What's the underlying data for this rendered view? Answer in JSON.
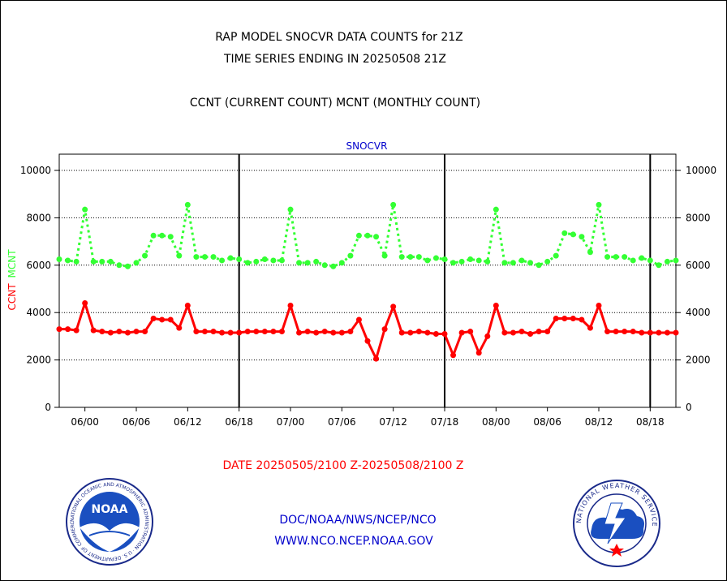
{
  "header": {
    "title_line1": "RAP MODEL SNOCVR DATA COUNTS for 21Z",
    "title_line2": "TIME SERIES ENDING IN 20250508 21Z",
    "legend_text": "CCNT (CURRENT COUNT) MCNT (MONTHLY COUNT)"
  },
  "footer": {
    "date_range": "DATE 20250505/2100 Z-20250508/2100 Z",
    "org": "DOC/NOAA/NWS/NCEP/NCO",
    "url": "WWW.NCO.NCEP.NOAA.GOV",
    "noaa_logo_text": "NOAA",
    "noaa_ring_text": "NATIONAL OCEANIC AND ATMOSPHERIC ADMINISTRATION · U.S. DEPARTMENT OF COMMERCE ·",
    "nws_ring_text": "NATIONAL WEATHER SERVICE"
  },
  "colors": {
    "ccnt": "#ff0000",
    "mcnt": "#33ff33",
    "label_blue": "#0000cc",
    "footer_red": "#ff0000",
    "footer_blue": "#0000cc"
  },
  "chart_data": {
    "type": "line",
    "title": "SNOCVR",
    "ylabel_ccnt": "CCNT",
    "ylabel_mcnt": "MCNT",
    "ylim": [
      0,
      10000
    ],
    "yticks": [
      0,
      2000,
      4000,
      6000,
      8000,
      10000
    ],
    "ytick_labels": [
      "0",
      "2000",
      "4000",
      "6000",
      "8000",
      "10000"
    ],
    "xlim": [
      -3,
      69
    ],
    "xticks": [
      0,
      6,
      12,
      18,
      24,
      30,
      36,
      42,
      48,
      54,
      60,
      66
    ],
    "xtick_labels": [
      "06/00",
      "06/06",
      "06/12",
      "06/18",
      "07/00",
      "07/06",
      "07/12",
      "07/18",
      "08/00",
      "08/06",
      "08/12",
      "08/18"
    ],
    "x_unit": "hours from 06/00",
    "day_boundaries": [
      18,
      42,
      66
    ],
    "grid": "horizontal dotted",
    "x": [
      -3,
      -2,
      -1,
      0,
      1,
      2,
      3,
      4,
      5,
      6,
      7,
      8,
      9,
      10,
      11,
      12,
      13,
      14,
      15,
      16,
      17,
      18,
      19,
      20,
      21,
      22,
      23,
      24,
      25,
      26,
      27,
      28,
      29,
      30,
      31,
      32,
      33,
      34,
      35,
      36,
      37,
      38,
      39,
      40,
      41,
      42,
      43,
      44,
      45,
      46,
      47,
      48,
      49,
      50,
      51,
      52,
      53,
      54,
      55,
      56,
      57,
      58,
      59,
      60,
      61,
      62,
      63,
      64,
      65,
      66,
      67,
      68,
      69
    ],
    "series": [
      {
        "name": "MCNT",
        "style": "dotted",
        "values": [
          6250,
          6200,
          6150,
          8350,
          6150,
          6150,
          6150,
          6000,
          5950,
          6100,
          6400,
          7250,
          7250,
          7200,
          6400,
          8550,
          6350,
          6350,
          6350,
          6200,
          6300,
          6250,
          6100,
          6150,
          6250,
          6200,
          6200,
          8350,
          6100,
          6100,
          6150,
          6000,
          5950,
          6100,
          6400,
          7250,
          7250,
          7200,
          6400,
          8550,
          6350,
          6350,
          6350,
          6200,
          6300,
          6250,
          6100,
          6150,
          6250,
          6200,
          6150,
          8350,
          6100,
          6100,
          6200,
          6100,
          6000,
          6150,
          6400,
          7350,
          7300,
          7200,
          6550,
          8550,
          6350,
          6350,
          6350,
          6200,
          6300,
          6200,
          6000,
          6150,
          6200
        ]
      },
      {
        "name": "CCNT",
        "style": "solid",
        "values": [
          3300,
          3300,
          3250,
          4400,
          3250,
          3200,
          3150,
          3200,
          3150,
          3200,
          3200,
          3750,
          3700,
          3700,
          3350,
          4300,
          3200,
          3200,
          3200,
          3150,
          3150,
          3150,
          3200,
          3200,
          3200,
          3200,
          3200,
          4300,
          3150,
          3200,
          3150,
          3200,
          3150,
          3150,
          3200,
          3700,
          2800,
          2050,
          3300,
          4250,
          3150,
          3150,
          3200,
          3150,
          3100,
          3100,
          2200,
          3150,
          3200,
          2300,
          3000,
          4300,
          3150,
          3150,
          3200,
          3100,
          3200,
          3200,
          3750,
          3750,
          3750,
          3700,
          3350,
          4300,
          3200,
          3200,
          3200,
          3200,
          3150,
          3150,
          3150,
          3150,
          3150
        ]
      }
    ]
  }
}
